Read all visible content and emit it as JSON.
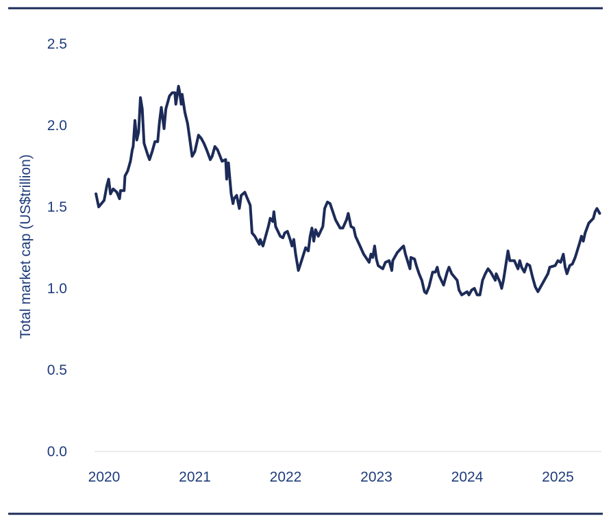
{
  "chart_data": {
    "type": "line",
    "title": "",
    "xlabel": "",
    "ylabel": "Total market cap (US$trillion)",
    "xlim": [
      2019.9,
      2025.5
    ],
    "ylim": [
      0,
      2.5
    ],
    "x_ticks": [
      "2020",
      "2021",
      "2022",
      "2023",
      "2024",
      "2025"
    ],
    "y_ticks": [
      "0.0",
      "0.5",
      "1.0",
      "1.5",
      "2.0",
      "2.5"
    ],
    "grid": false,
    "line_color": "#1c2b58",
    "series": [
      {
        "name": "Total market cap",
        "points": [
          [
            2019.91,
            1.58
          ],
          [
            2019.94,
            1.5
          ],
          [
            2020.0,
            1.54
          ],
          [
            2020.03,
            1.63
          ],
          [
            2020.05,
            1.67
          ],
          [
            2020.07,
            1.58
          ],
          [
            2020.1,
            1.61
          ],
          [
            2020.14,
            1.59
          ],
          [
            2020.17,
            1.55
          ],
          [
            2020.18,
            1.6
          ],
          [
            2020.22,
            1.6
          ],
          [
            2020.23,
            1.69
          ],
          [
            2020.26,
            1.72
          ],
          [
            2020.29,
            1.78
          ],
          [
            2020.31,
            1.85
          ],
          [
            2020.32,
            1.87
          ],
          [
            2020.34,
            2.03
          ],
          [
            2020.36,
            1.91
          ],
          [
            2020.38,
            1.96
          ],
          [
            2020.4,
            2.17
          ],
          [
            2020.42,
            2.1
          ],
          [
            2020.44,
            1.89
          ],
          [
            2020.48,
            1.82
          ],
          [
            2020.5,
            1.79
          ],
          [
            2020.53,
            1.84
          ],
          [
            2020.56,
            1.9
          ],
          [
            2020.59,
            1.9
          ],
          [
            2020.61,
            2.02
          ],
          [
            2020.63,
            2.11
          ],
          [
            2020.66,
            1.98
          ],
          [
            2020.68,
            2.1
          ],
          [
            2020.72,
            2.18
          ],
          [
            2020.75,
            2.2
          ],
          [
            2020.78,
            2.2
          ],
          [
            2020.79,
            2.13
          ],
          [
            2020.82,
            2.24
          ],
          [
            2020.83,
            2.21
          ],
          [
            2020.85,
            2.13
          ],
          [
            2020.86,
            2.19
          ],
          [
            2020.89,
            2.08
          ],
          [
            2020.92,
            2.01
          ],
          [
            2020.94,
            1.93
          ],
          [
            2020.97,
            1.81
          ],
          [
            2021.0,
            1.84
          ],
          [
            2021.04,
            1.94
          ],
          [
            2021.07,
            1.92
          ],
          [
            2021.1,
            1.89
          ],
          [
            2021.13,
            1.85
          ],
          [
            2021.17,
            1.79
          ],
          [
            2021.19,
            1.81
          ],
          [
            2021.22,
            1.87
          ],
          [
            2021.25,
            1.85
          ],
          [
            2021.3,
            1.78
          ],
          [
            2021.34,
            1.79
          ],
          [
            2021.35,
            1.67
          ],
          [
            2021.37,
            1.77
          ],
          [
            2021.4,
            1.58
          ],
          [
            2021.42,
            1.52
          ],
          [
            2021.43,
            1.55
          ],
          [
            2021.46,
            1.57
          ],
          [
            2021.49,
            1.49
          ],
          [
            2021.51,
            1.57
          ],
          [
            2021.55,
            1.59
          ],
          [
            2021.58,
            1.55
          ],
          [
            2021.61,
            1.51
          ],
          [
            2021.63,
            1.34
          ],
          [
            2021.66,
            1.32
          ],
          [
            2021.71,
            1.27
          ],
          [
            2021.72,
            1.3
          ],
          [
            2021.75,
            1.26
          ],
          [
            2021.78,
            1.32
          ],
          [
            2021.81,
            1.38
          ],
          [
            2021.83,
            1.43
          ],
          [
            2021.86,
            1.41
          ],
          [
            2021.87,
            1.47
          ],
          [
            2021.89,
            1.38
          ],
          [
            2021.94,
            1.32
          ],
          [
            2021.97,
            1.31
          ],
          [
            2021.99,
            1.34
          ],
          [
            2022.02,
            1.35
          ],
          [
            2022.05,
            1.3
          ],
          [
            2022.07,
            1.26
          ],
          [
            2022.09,
            1.3
          ],
          [
            2022.11,
            1.21
          ],
          [
            2022.14,
            1.11
          ],
          [
            2022.17,
            1.16
          ],
          [
            2022.22,
            1.25
          ],
          [
            2022.25,
            1.23
          ],
          [
            2022.27,
            1.32
          ],
          [
            2022.29,
            1.37
          ],
          [
            2022.31,
            1.29
          ],
          [
            2022.33,
            1.36
          ],
          [
            2022.36,
            1.32
          ],
          [
            2022.41,
            1.38
          ],
          [
            2022.43,
            1.49
          ],
          [
            2022.46,
            1.53
          ],
          [
            2022.49,
            1.52
          ],
          [
            2022.52,
            1.47
          ],
          [
            2022.55,
            1.42
          ],
          [
            2022.6,
            1.37
          ],
          [
            2022.63,
            1.37
          ],
          [
            2022.67,
            1.42
          ],
          [
            2022.69,
            1.46
          ],
          [
            2022.72,
            1.38
          ],
          [
            2022.75,
            1.37
          ],
          [
            2022.77,
            1.32
          ],
          [
            2022.82,
            1.26
          ],
          [
            2022.86,
            1.21
          ],
          [
            2022.92,
            1.16
          ],
          [
            2022.94,
            1.21
          ],
          [
            2022.96,
            1.19
          ],
          [
            2022.98,
            1.26
          ],
          [
            2023.0,
            1.18
          ],
          [
            2023.02,
            1.14
          ],
          [
            2023.07,
            1.12
          ],
          [
            2023.1,
            1.16
          ],
          [
            2023.14,
            1.17
          ],
          [
            2023.17,
            1.11
          ],
          [
            2023.18,
            1.17
          ],
          [
            2023.23,
            1.22
          ],
          [
            2023.28,
            1.25
          ],
          [
            2023.3,
            1.26
          ],
          [
            2023.32,
            1.21
          ],
          [
            2023.37,
            1.12
          ],
          [
            2023.38,
            1.19
          ],
          [
            2023.42,
            1.18
          ],
          [
            2023.44,
            1.14
          ],
          [
            2023.47,
            1.09
          ],
          [
            2023.5,
            1.05
          ],
          [
            2023.53,
            0.98
          ],
          [
            2023.55,
            0.97
          ],
          [
            2023.58,
            1.01
          ],
          [
            2023.62,
            1.1
          ],
          [
            2023.65,
            1.1
          ],
          [
            2023.67,
            1.13
          ],
          [
            2023.69,
            1.08
          ],
          [
            2023.74,
            1.02
          ],
          [
            2023.78,
            1.1
          ],
          [
            2023.8,
            1.13
          ],
          [
            2023.83,
            1.09
          ],
          [
            2023.89,
            1.05
          ],
          [
            2023.91,
            0.99
          ],
          [
            2023.94,
            0.96
          ],
          [
            2024.0,
            0.98
          ],
          [
            2024.02,
            0.96
          ],
          [
            2024.05,
            0.99
          ],
          [
            2024.08,
            1.0
          ],
          [
            2024.11,
            0.96
          ],
          [
            2024.14,
            0.96
          ],
          [
            2024.17,
            1.05
          ],
          [
            2024.2,
            1.09
          ],
          [
            2024.23,
            1.12
          ],
          [
            2024.26,
            1.1
          ],
          [
            2024.31,
            1.05
          ],
          [
            2024.32,
            1.09
          ],
          [
            2024.36,
            1.04
          ],
          [
            2024.38,
            1.0
          ],
          [
            2024.4,
            1.05
          ],
          [
            2024.45,
            1.23
          ],
          [
            2024.47,
            1.17
          ],
          [
            2024.52,
            1.17
          ],
          [
            2024.56,
            1.12
          ],
          [
            2024.58,
            1.17
          ],
          [
            2024.6,
            1.13
          ],
          [
            2024.63,
            1.1
          ],
          [
            2024.66,
            1.15
          ],
          [
            2024.69,
            1.14
          ],
          [
            2024.72,
            1.07
          ],
          [
            2024.75,
            1.01
          ],
          [
            2024.78,
            0.98
          ],
          [
            2024.84,
            1.04
          ],
          [
            2024.89,
            1.09
          ],
          [
            2024.91,
            1.13
          ],
          [
            2024.97,
            1.14
          ],
          [
            2025.0,
            1.17
          ],
          [
            2025.03,
            1.16
          ],
          [
            2025.06,
            1.21
          ],
          [
            2025.08,
            1.13
          ],
          [
            2025.1,
            1.09
          ],
          [
            2025.13,
            1.14
          ],
          [
            2025.16,
            1.15
          ],
          [
            2025.19,
            1.19
          ],
          [
            2025.24,
            1.28
          ],
          [
            2025.26,
            1.32
          ],
          [
            2025.28,
            1.29
          ],
          [
            2025.3,
            1.34
          ],
          [
            2025.34,
            1.4
          ],
          [
            2025.39,
            1.43
          ],
          [
            2025.41,
            1.47
          ],
          [
            2025.43,
            1.49
          ],
          [
            2025.46,
            1.46
          ]
        ]
      }
    ]
  }
}
